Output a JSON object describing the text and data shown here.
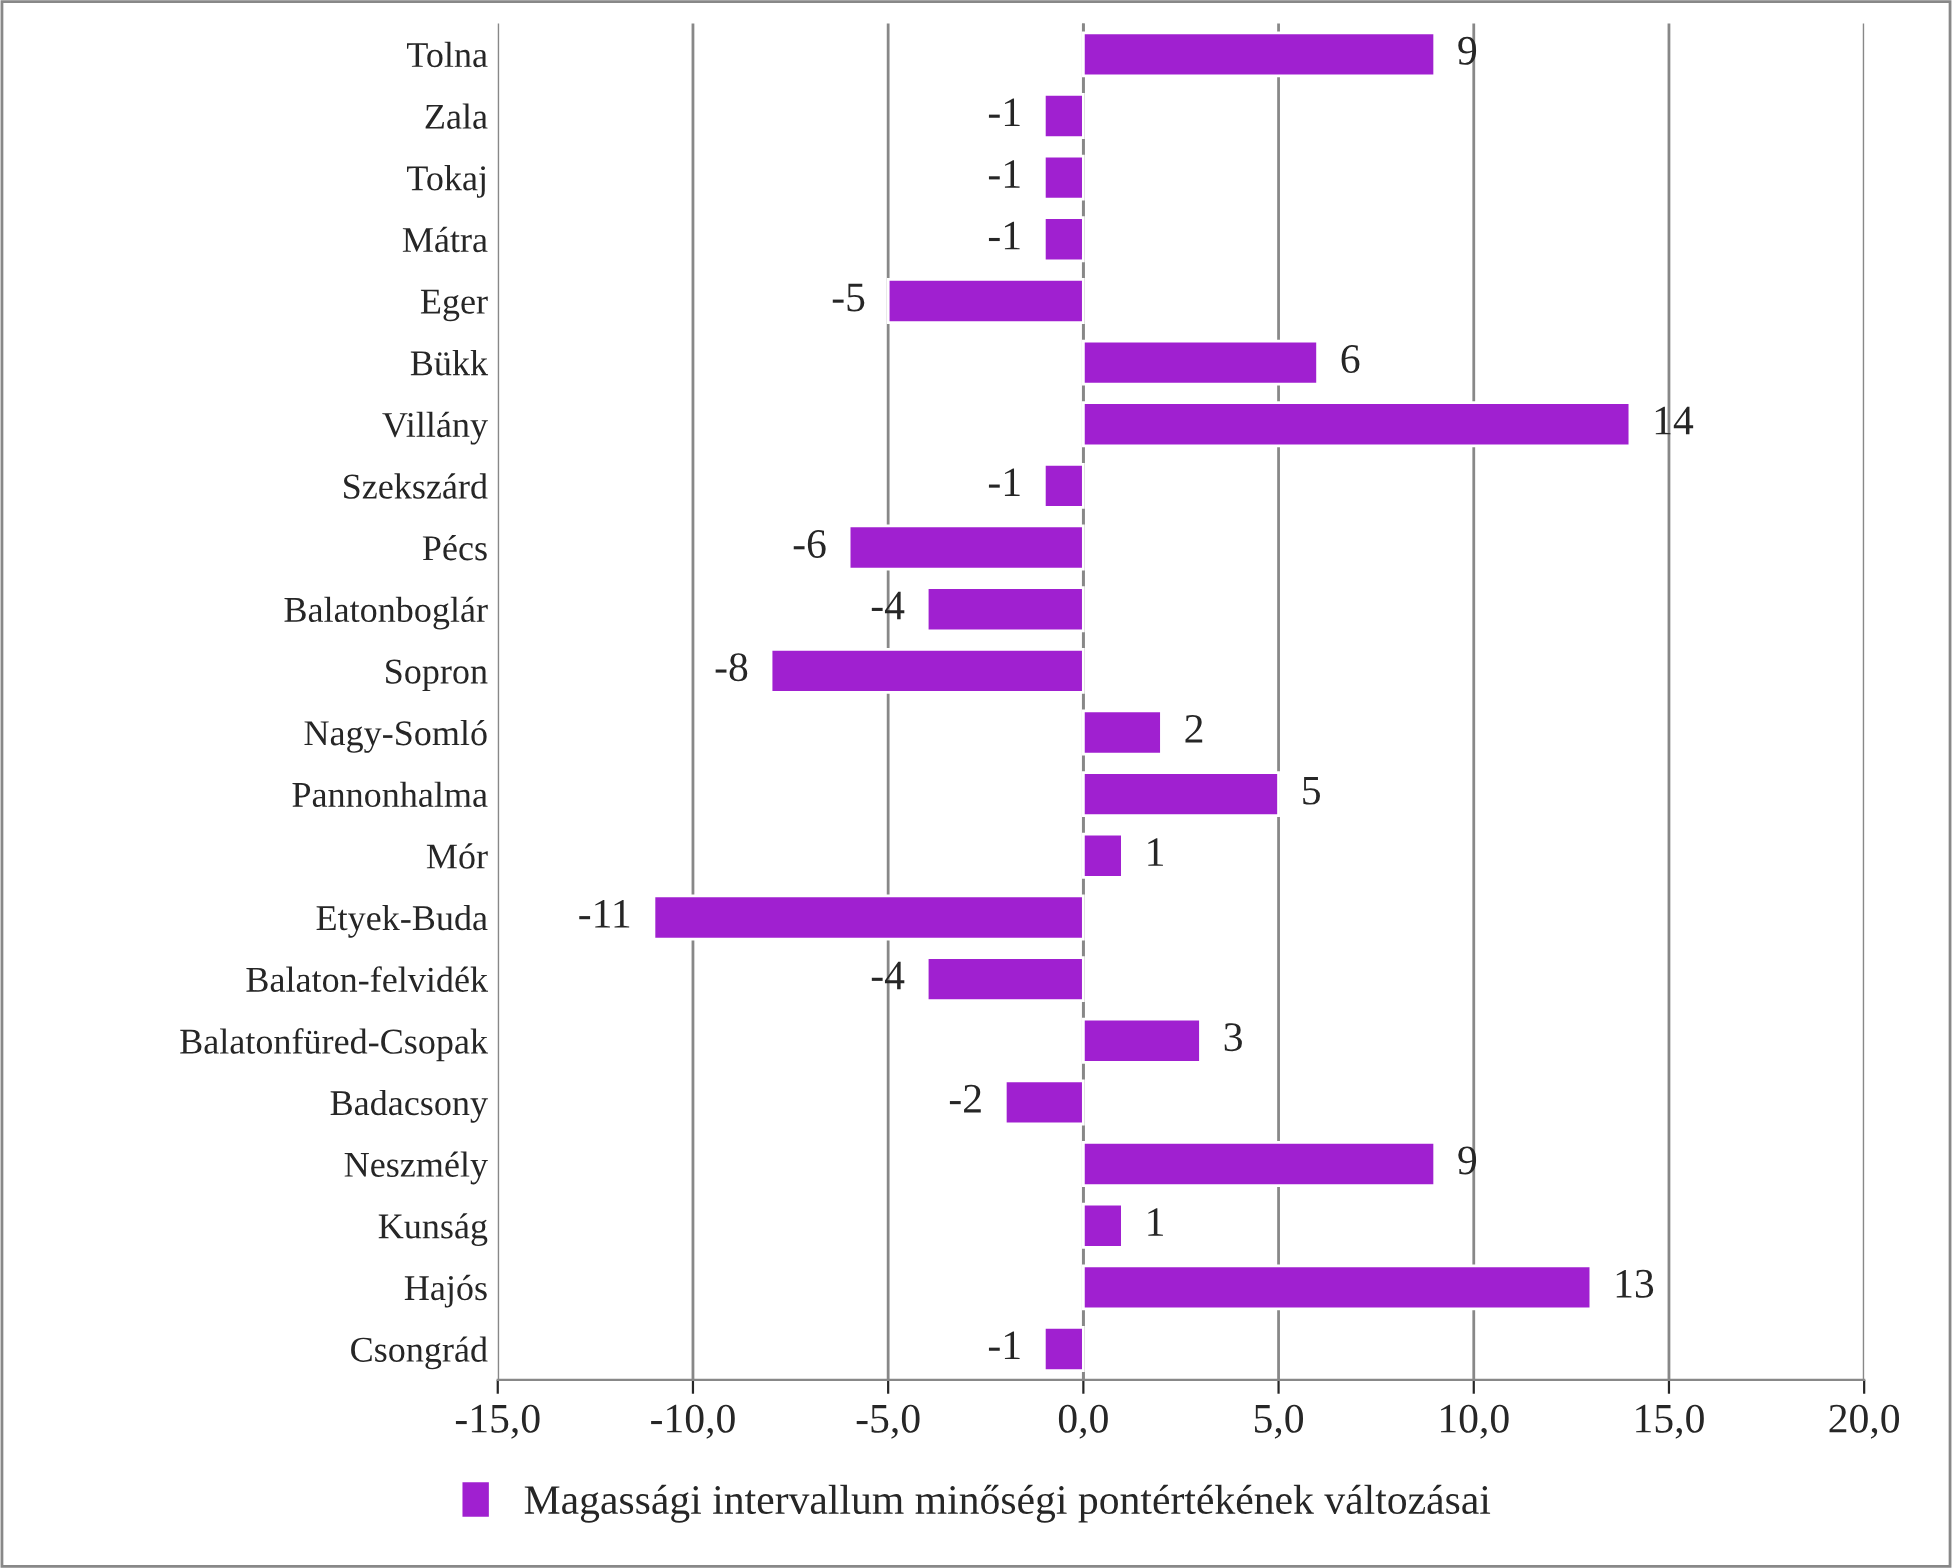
{
  "chart_data": {
    "type": "bar",
    "orientation": "horizontal",
    "categories": [
      "Tolna",
      "Zala",
      "Tokaj",
      "Mátra",
      "Eger",
      "Bükk",
      "Villány",
      "Szekszárd",
      "Pécs",
      "Balatonboglár",
      "Sopron",
      "Nagy-Somló",
      "Pannonhalma",
      "Mór",
      "Etyek-Buda",
      "Balaton-felvidék",
      "Balatonfüred-Csopak",
      "Badacsony",
      "Neszmély",
      "Kunság",
      "Hajós",
      "Csongrád"
    ],
    "series": [
      {
        "name": "Magassági intervallum minőségi pontértékének változásai",
        "color": "#a020d0",
        "values": [
          9,
          -1,
          -1,
          -1,
          -5,
          6,
          14,
          -1,
          -6,
          -4,
          -8,
          2,
          5,
          1,
          -11,
          -4,
          3,
          -2,
          9,
          1,
          13,
          -1
        ]
      }
    ],
    "xlim": [
      -15,
      20
    ],
    "xticks": [
      {
        "value": -15,
        "label": "-15,0"
      },
      {
        "value": -10,
        "label": "-10,0"
      },
      {
        "value": -5,
        "label": "-5,0"
      },
      {
        "value": 0,
        "label": "0,0"
      },
      {
        "value": 5,
        "label": "5,0"
      },
      {
        "value": 10,
        "label": "10,0"
      },
      {
        "value": 15,
        "label": "15,0"
      },
      {
        "value": 20,
        "label": "20,0"
      }
    ],
    "grid": "x",
    "legend": "bottom",
    "data_labels": true
  }
}
